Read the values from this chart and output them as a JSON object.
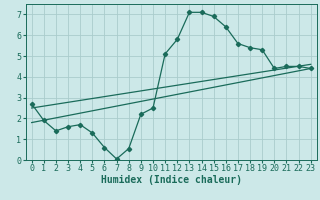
{
  "xlabel": "Humidex (Indice chaleur)",
  "xlim": [
    -0.5,
    23.5
  ],
  "ylim": [
    0,
    7.5
  ],
  "xticks": [
    0,
    1,
    2,
    3,
    4,
    5,
    6,
    7,
    8,
    9,
    10,
    11,
    12,
    13,
    14,
    15,
    16,
    17,
    18,
    19,
    20,
    21,
    22,
    23
  ],
  "yticks": [
    0,
    1,
    2,
    3,
    4,
    5,
    6,
    7
  ],
  "bg_color": "#cce8e8",
  "grid_color": "#aacccc",
  "line_color": "#1a6b5a",
  "line1_x": [
    0,
    1,
    2,
    3,
    4,
    5,
    6,
    7,
    8,
    9,
    10,
    11,
    12,
    13,
    14,
    15,
    16,
    17,
    18,
    19,
    20,
    21,
    22,
    23
  ],
  "line1_y": [
    2.7,
    1.9,
    1.4,
    1.6,
    1.7,
    1.3,
    0.6,
    0.05,
    0.55,
    2.2,
    2.5,
    5.1,
    5.8,
    7.1,
    7.1,
    6.9,
    6.4,
    5.6,
    5.4,
    5.3,
    4.4,
    4.5,
    4.5,
    4.4
  ],
  "line2_x": [
    0,
    23
  ],
  "line2_y": [
    1.8,
    4.4
  ],
  "line3_x": [
    0,
    23
  ],
  "line3_y": [
    2.5,
    4.6
  ],
  "font_family": "monospace",
  "xlabel_fontsize": 7,
  "tick_fontsize": 6
}
